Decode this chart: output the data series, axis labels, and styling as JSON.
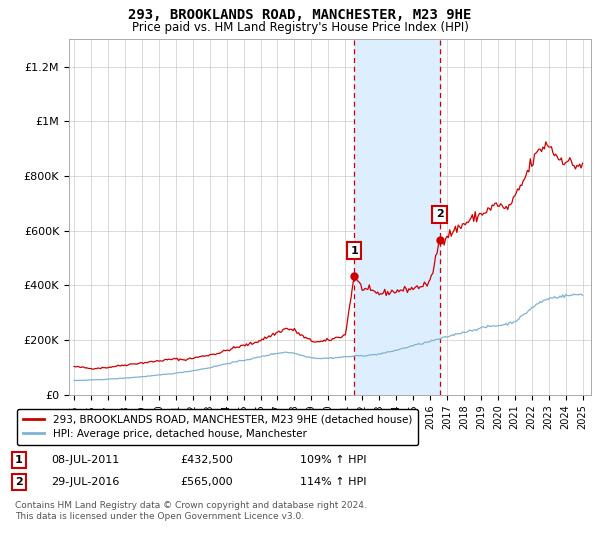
{
  "title": "293, BROOKLANDS ROAD, MANCHESTER, M23 9HE",
  "subtitle": "Price paid vs. HM Land Registry's House Price Index (HPI)",
  "ylabel_ticks": [
    "£0",
    "£200K",
    "£400K",
    "£600K",
    "£800K",
    "£1M",
    "£1.2M"
  ],
  "ytick_values": [
    0,
    200000,
    400000,
    600000,
    800000,
    1000000,
    1200000
  ],
  "ylim": [
    0,
    1300000
  ],
  "xlim_start": 1994.7,
  "xlim_end": 2025.5,
  "x_ticks": [
    1995,
    1996,
    1997,
    1998,
    1999,
    2000,
    2001,
    2002,
    2003,
    2004,
    2005,
    2006,
    2007,
    2008,
    2009,
    2010,
    2011,
    2012,
    2013,
    2014,
    2015,
    2016,
    2017,
    2018,
    2019,
    2020,
    2021,
    2022,
    2023,
    2024,
    2025
  ],
  "sale1_x": 2011.52,
  "sale1_y": 432500,
  "sale1_label": "1",
  "sale1_date": "08-JUL-2011",
  "sale1_price": "£432,500",
  "sale1_hpi": "109% ↑ HPI",
  "sale2_x": 2016.57,
  "sale2_y": 565000,
  "sale2_label": "2",
  "sale2_date": "29-JUL-2016",
  "sale2_price": "£565,000",
  "sale2_hpi": "114% ↑ HPI",
  "shaded_region_start": 2011.52,
  "shaded_region_end": 2016.57,
  "red_line_color": "#cc0000",
  "blue_line_color": "#7fb3d3",
  "shaded_color": "#ddeeff",
  "grid_color": "#cccccc",
  "background_color": "#ffffff",
  "legend_label_red": "293, BROOKLANDS ROAD, MANCHESTER, M23 9HE (detached house)",
  "legend_label_blue": "HPI: Average price, detached house, Manchester",
  "footnote": "Contains HM Land Registry data © Crown copyright and database right 2024.\nThis data is licensed under the Open Government Licence v3.0."
}
